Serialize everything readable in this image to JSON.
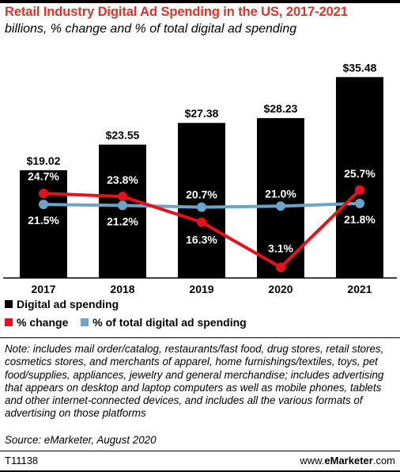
{
  "header": {
    "title": "Retail Industry Digital Ad Spending in the US, 2017-2021",
    "subtitle": "billions, % change and % of total digital ad spending"
  },
  "chart_data": {
    "type": "bar",
    "categories": [
      "2017",
      "2018",
      "2019",
      "2020",
      "2021"
    ],
    "series": [
      {
        "name": "Digital ad spending",
        "kind": "bar",
        "color": "#000000",
        "values": [
          19.02,
          23.55,
          27.38,
          28.23,
          35.48
        ],
        "labels": [
          "$19.02",
          "$23.55",
          "$27.38",
          "$28.23",
          "$35.48"
        ]
      },
      {
        "name": "% change",
        "kind": "line",
        "color": "#e8101a",
        "values": [
          24.7,
          23.8,
          16.3,
          3.1,
          25.7
        ],
        "labels": [
          "24.7%",
          "23.8%",
          "16.3%",
          "3.1%",
          "25.7%"
        ]
      },
      {
        "name": "% of total digital ad spending",
        "kind": "line",
        "color": "#6ba4c8",
        "values": [
          21.5,
          21.2,
          20.7,
          21.0,
          21.8
        ],
        "labels": [
          "21.5%",
          "21.2%",
          "20.7%",
          "21.0%",
          "21.8%"
        ]
      }
    ],
    "bar_ylim": [
      0,
      40
    ],
    "line_ylim": [
      0,
      50
    ],
    "legend_position": "bottom"
  },
  "footer": {
    "note": "Note: includes mail order/catalog, restaurants/fast food, drug stores, retail stores, cosmetics stores, and merchants of apparel, home furnishings/textiles, toys, pet food/supplies, appliances, jewelry and general merchandise; includes advertising that appears on desktop and laptop computers as well as mobile phones, tablets and other internet-connected devices, and includes all the various formats of advertising on those platforms",
    "source": "Source: eMarketer, August 2020",
    "code": "T11138",
    "brand_prefix": "www.",
    "brand_name": "eMarketer",
    "brand_suffix": ".com"
  }
}
